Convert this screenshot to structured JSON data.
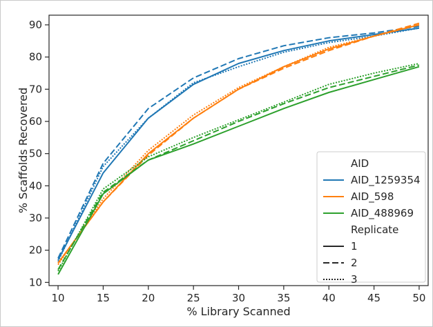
{
  "chart_data": {
    "type": "line",
    "title": "",
    "xlabel": "% Library Scanned",
    "ylabel": "% Scaffolds Recovered",
    "xlim": [
      9,
      51
    ],
    "ylim": [
      9,
      93
    ],
    "xticks": [
      10,
      15,
      20,
      25,
      30,
      35,
      40,
      45,
      50
    ],
    "yticks": [
      10,
      20,
      30,
      40,
      50,
      60,
      70,
      80,
      90
    ],
    "grid": false,
    "legend_position": "lower-right",
    "legend": {
      "hue_title": "AID",
      "style_title": "Replicate",
      "hue_entries": [
        {
          "label": "AID_1259354",
          "color": "#1f77b4"
        },
        {
          "label": "AID_598",
          "color": "#ff7f0e"
        },
        {
          "label": "AID_488969",
          "color": "#2ca02c"
        }
      ],
      "style_entries": [
        {
          "label": "1",
          "dash": "solid"
        },
        {
          "label": "2",
          "dash": "dashed"
        },
        {
          "label": "3",
          "dash": "dotted"
        }
      ]
    },
    "x": [
      10,
      15,
      20,
      25,
      30,
      35,
      40,
      45,
      50
    ],
    "series": [
      {
        "aid": "AID_1259354",
        "replicate": "1",
        "color": "#1f77b4",
        "dash": "solid",
        "values": [
          17,
          44,
          61,
          71.5,
          78,
          82,
          85,
          87,
          89
        ]
      },
      {
        "aid": "AID_1259354",
        "replicate": "2",
        "color": "#1f77b4",
        "dash": "dashed",
        "values": [
          17.5,
          47,
          64,
          73.5,
          79.5,
          83.5,
          86,
          87.5,
          89.5
        ]
      },
      {
        "aid": "AID_1259354",
        "replicate": "3",
        "color": "#1f77b4",
        "dash": "dotted",
        "values": [
          16.5,
          46,
          61,
          72,
          77,
          81.5,
          84.5,
          86.5,
          89
        ]
      },
      {
        "aid": "AID_598",
        "replicate": "1",
        "color": "#ff7f0e",
        "dash": "solid",
        "values": [
          16,
          35,
          50,
          61,
          70,
          77,
          82.5,
          86.5,
          90
        ]
      },
      {
        "aid": "AID_598",
        "replicate": "2",
        "color": "#ff7f0e",
        "dash": "dashed",
        "values": [
          16,
          35,
          49.5,
          61,
          70,
          76.5,
          82,
          86.5,
          90.5
        ]
      },
      {
        "aid": "AID_598",
        "replicate": "3",
        "color": "#ff7f0e",
        "dash": "dotted",
        "values": [
          15.5,
          36,
          51,
          62,
          70.5,
          77,
          83,
          86.5,
          90
        ]
      },
      {
        "aid": "AID_488969",
        "replicate": "1",
        "color": "#2ca02c",
        "dash": "solid",
        "values": [
          12.5,
          37.5,
          48,
          53,
          58.5,
          64,
          69,
          73,
          77
        ]
      },
      {
        "aid": "AID_488969",
        "replicate": "2",
        "color": "#2ca02c",
        "dash": "dashed",
        "values": [
          14,
          38,
          48,
          54,
          60,
          65.5,
          70.5,
          74,
          77.5
        ]
      },
      {
        "aid": "AID_488969",
        "replicate": "3",
        "color": "#2ca02c",
        "dash": "dotted",
        "values": [
          13.5,
          39,
          49,
          55,
          60.5,
          66,
          71.5,
          75,
          78
        ]
      }
    ]
  }
}
